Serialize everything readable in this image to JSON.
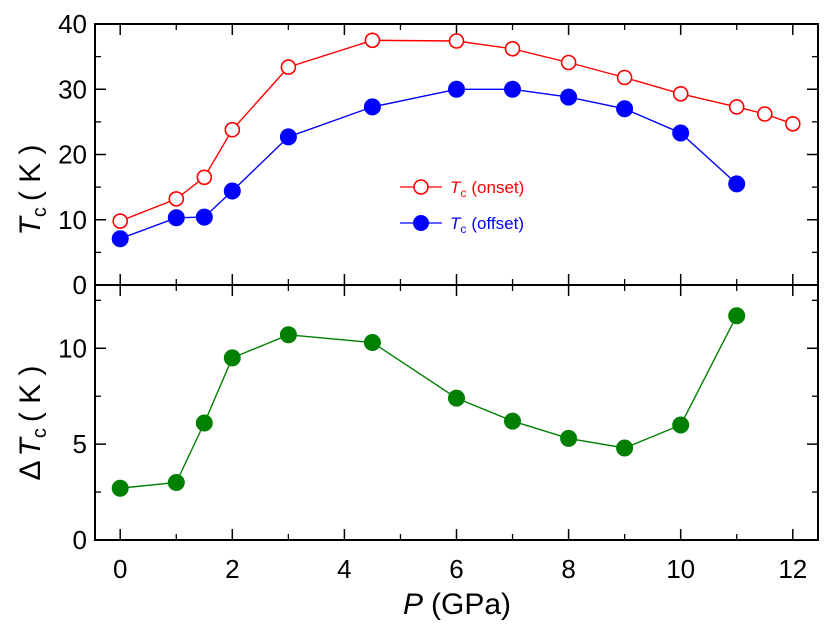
{
  "chart_data": [
    {
      "type": "line",
      "panel": "top",
      "ylabel": "T_c ( K )",
      "ylabel_symbol": "T",
      "ylabel_sub": "c",
      "ylabel_unit": "( K )",
      "ylim": [
        0,
        40
      ],
      "yticks": [
        "0",
        "10",
        "20",
        "30",
        "40"
      ],
      "yticks_values": [
        0,
        10,
        20,
        30,
        40
      ],
      "legend_position": "center-right",
      "series": [
        {
          "name": "T_c (onset)",
          "legend_symbol": "T",
          "legend_sub": "c",
          "legend_text": "(onset)",
          "color": "#ff0000",
          "marker": "open-circle",
          "x": [
            0,
            1,
            1.5,
            2,
            3,
            4.5,
            6,
            7,
            8,
            9,
            10,
            11,
            11.5,
            12
          ],
          "y": [
            9.8,
            13.2,
            16.5,
            23.8,
            33.4,
            37.5,
            37.4,
            36.2,
            34.1,
            31.8,
            29.3,
            27.3,
            26.2,
            24.7
          ]
        },
        {
          "name": "T_c (offset)",
          "legend_symbol": "T",
          "legend_sub": "c",
          "legend_text": "(offset)",
          "color": "#0000ff",
          "marker": "filled-circle",
          "x": [
            0,
            1,
            1.5,
            2,
            3,
            4.5,
            6,
            7,
            8,
            9,
            10,
            11
          ],
          "y": [
            7.1,
            10.3,
            10.4,
            14.4,
            22.7,
            27.3,
            30.0,
            30.0,
            28.8,
            27.0,
            23.3,
            15.5
          ]
        }
      ]
    },
    {
      "type": "line",
      "panel": "bottom",
      "ylabel": "ΔT_c ( K )",
      "ylabel_prefix": "Δ",
      "ylabel_symbol": "T",
      "ylabel_sub": "c",
      "ylabel_unit": "( K )",
      "ylim": [
        0,
        13.3
      ],
      "yticks": [
        "0",
        "5",
        "10"
      ],
      "yticks_values": [
        0,
        5,
        10
      ],
      "series": [
        {
          "color": "#008000",
          "marker": "filled-circle",
          "x": [
            0,
            1,
            1.5,
            2,
            3,
            4.5,
            6,
            7,
            8,
            9,
            10,
            11
          ],
          "y": [
            2.7,
            3.0,
            6.1,
            9.5,
            10.7,
            10.3,
            7.4,
            6.2,
            5.3,
            4.8,
            6.0,
            11.7
          ]
        }
      ]
    }
  ],
  "x_axis": {
    "xlabel": "P (GPa)",
    "xlabel_symbol": "P",
    "xlabel_unit": "(GPa)",
    "xlim": [
      -0.45,
      12.45
    ],
    "xticks": [
      "0",
      "2",
      "4",
      "6",
      "8",
      "10",
      "12"
    ],
    "xticks_values": [
      0,
      2,
      4,
      6,
      8,
      10,
      12
    ],
    "minor_step": 1
  }
}
